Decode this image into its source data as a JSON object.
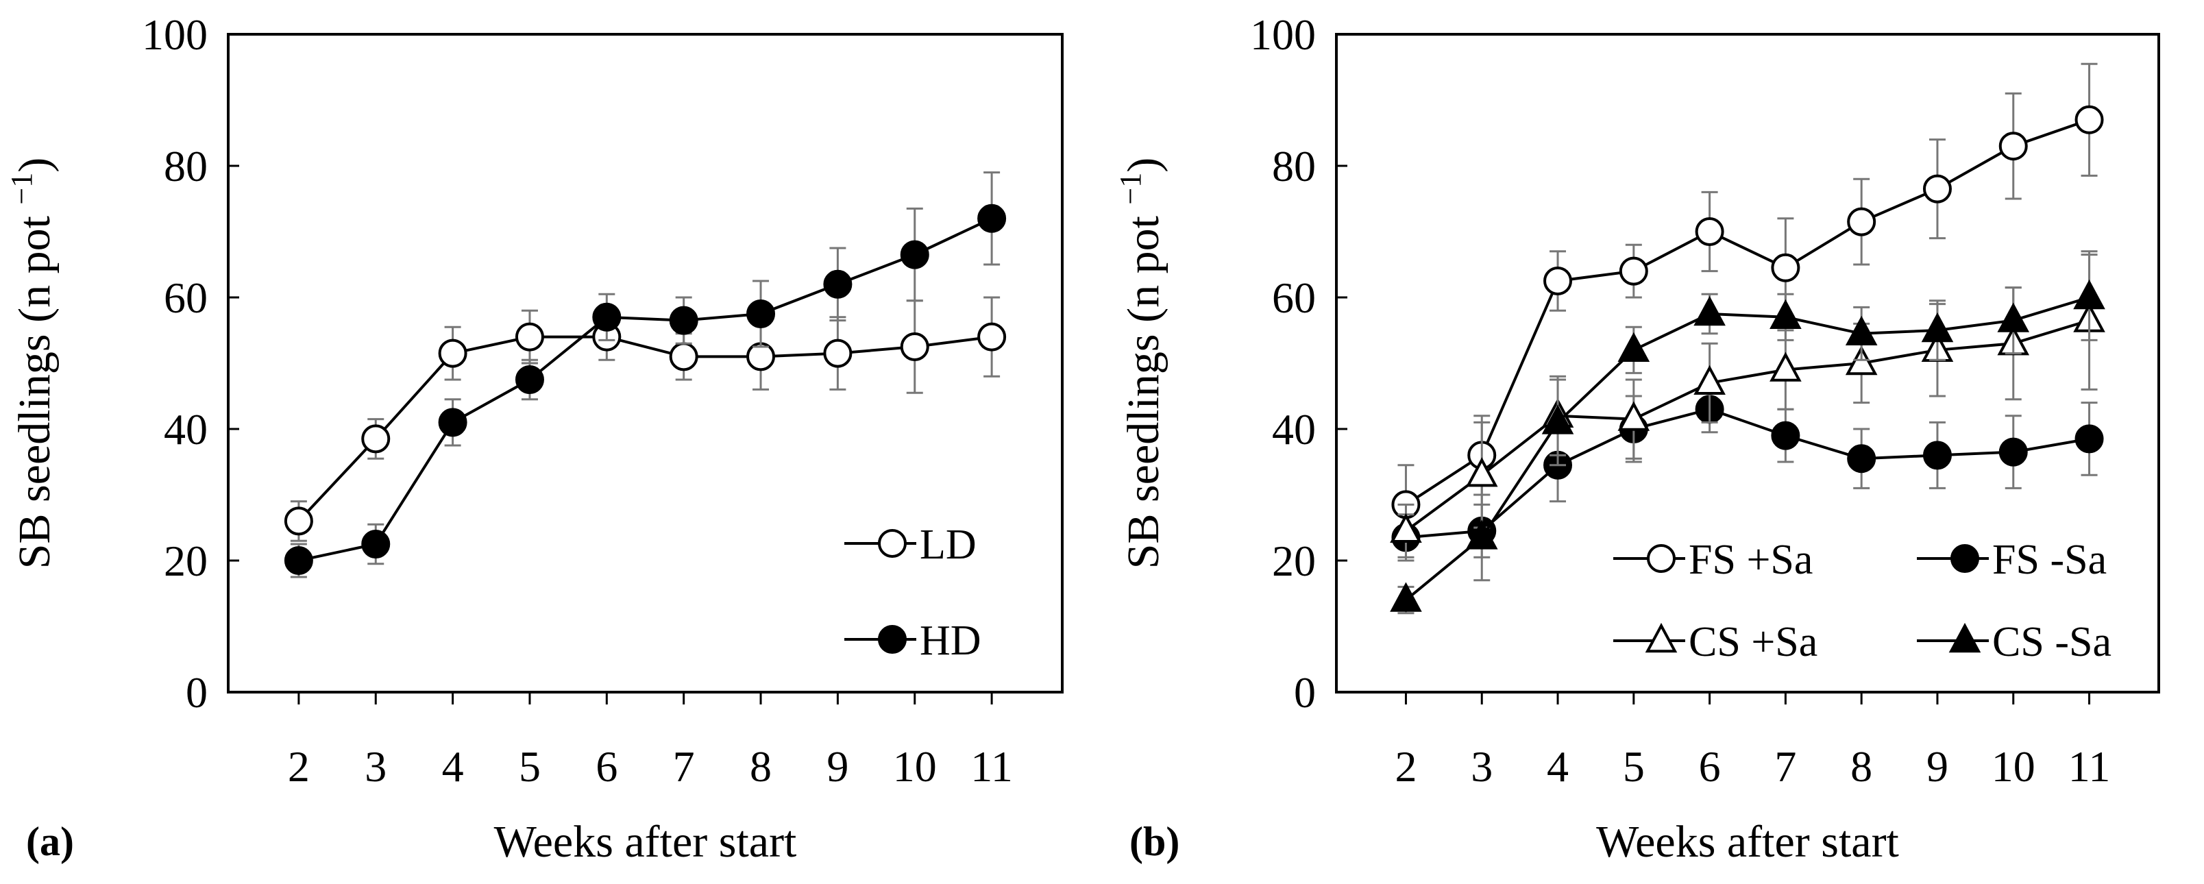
{
  "chart_data": [
    {
      "panel_label": "(a)",
      "type": "line",
      "xlabel": "Weeks after start",
      "ylabel": "SB seedlings (n pot ",
      "ylabel_sup": "−1",
      "ylabel_close": ")",
      "x": [
        2,
        3,
        4,
        5,
        6,
        7,
        8,
        9,
        10,
        11
      ],
      "ylim": [
        0,
        100
      ],
      "yticks": [
        0,
        20,
        40,
        60,
        80,
        100
      ],
      "grid": false,
      "legend_position": "bottom-right",
      "series": [
        {
          "name": "LD",
          "marker": "circle",
          "filled": false,
          "values": [
            26,
            38.5,
            51.5,
            54,
            54,
            51,
            51,
            51.5,
            52.5,
            54
          ],
          "errors": [
            3,
            3,
            4,
            4,
            3.5,
            3.5,
            5,
            5.5,
            7,
            6
          ]
        },
        {
          "name": "HD",
          "marker": "circle",
          "filled": true,
          "values": [
            20,
            22.5,
            41,
            47.5,
            57,
            56.5,
            57.5,
            62,
            66.5,
            72
          ],
          "errors": [
            2.5,
            3,
            3.5,
            3,
            3.5,
            3.5,
            5,
            5.5,
            7,
            7
          ]
        }
      ]
    },
    {
      "panel_label": "(b)",
      "type": "line",
      "xlabel": "Weeks after start",
      "ylabel": "SB seedlings (n pot ",
      "ylabel_sup": "−1",
      "ylabel_close": ")",
      "x": [
        2,
        3,
        4,
        5,
        6,
        7,
        8,
        9,
        10,
        11
      ],
      "ylim": [
        0,
        100
      ],
      "yticks": [
        0,
        20,
        40,
        60,
        80,
        100
      ],
      "grid": false,
      "legend_position": "bottom-right",
      "series": [
        {
          "name": "FS +Sa",
          "marker": "circle",
          "filled": false,
          "values": [
            28.5,
            36,
            62.5,
            64,
            70,
            64.5,
            71.5,
            76.5,
            83,
            87
          ],
          "errors": [
            6,
            6,
            4.5,
            4,
            6,
            7.5,
            6.5,
            7.5,
            8,
            8.5
          ]
        },
        {
          "name": "FS -Sa",
          "marker": "circle",
          "filled": true,
          "values": [
            23.5,
            24.5,
            34.5,
            40,
            43,
            39,
            35.5,
            36,
            36.5,
            38.5
          ],
          "errors": [
            3.5,
            4,
            5.5,
            5,
            3.5,
            4,
            4.5,
            5,
            5.5,
            5.5
          ]
        },
        {
          "name": "CS +Sa",
          "marker": "triangle",
          "filled": false,
          "values": [
            24.5,
            33,
            42,
            41.5,
            47,
            49,
            50,
            52,
            53,
            56.5
          ],
          "errors": [
            4,
            8,
            6,
            6,
            6,
            6,
            6,
            7,
            8.5,
            10.5
          ]
        },
        {
          "name": "CS -Sa",
          "marker": "triangle",
          "filled": true,
          "values": [
            14,
            23.5,
            41,
            52,
            57.5,
            57,
            54.5,
            55,
            56.5,
            60
          ],
          "errors": [
            2,
            6.5,
            6.5,
            3.5,
            3,
            3.5,
            4,
            4.5,
            5,
            6.5
          ]
        }
      ]
    }
  ]
}
